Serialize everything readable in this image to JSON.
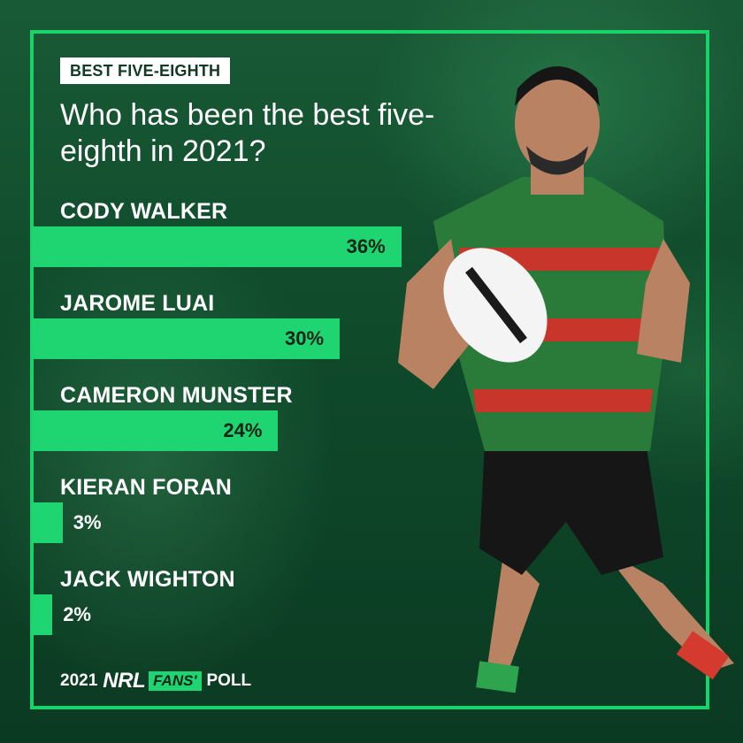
{
  "tag": "BEST FIVE-EIGHTH",
  "question": "Who has been the best five-eighth in 2021?",
  "chart_data": {
    "type": "bar",
    "orientation": "horizontal",
    "categories": [
      "CODY WALKER",
      "JAROME LUAI",
      "CAMERON MUNSTER",
      "KIERAN FORAN",
      "JACK WIGHTON"
    ],
    "values": [
      36,
      30,
      24,
      3,
      2
    ],
    "value_labels": [
      "36%",
      "30%",
      "24%",
      "3%",
      "2%"
    ],
    "unit": "%",
    "grid": false,
    "legend": "none",
    "bar_color": "#1fd572"
  },
  "footer": {
    "year": "2021",
    "brand": "NRL",
    "fans": "FANS'",
    "poll": "POLL"
  },
  "colors": {
    "accent": "#1fd572",
    "frame": "#17d36a",
    "background": "#0f4a2b"
  },
  "icons": {
    "player": "rugby-player-photo-icon"
  }
}
